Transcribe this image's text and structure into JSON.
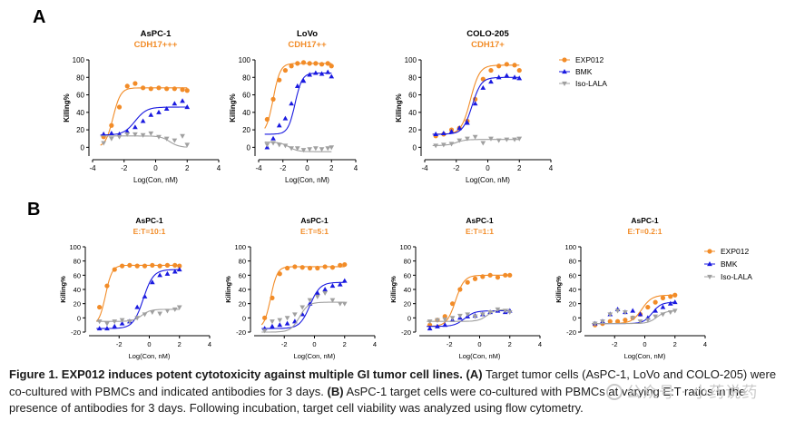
{
  "panel_letters": [
    "A",
    "B"
  ],
  "colors": {
    "exp": "#F28C28",
    "bmk": "#1A1AE0",
    "iso": "#A0A0A0"
  },
  "caption": {
    "label": "Figure 1. EXP012 induces potent cytotoxicity against multiple GI tumor cell lines.",
    "part_a_label": "(A)",
    "part_a_text": "Target tumor cells (AsPC-1, LoVo and COLO-205) were co-cultured with PBMCs and indicated antibodies for 3 days.",
    "part_b_label": "(B)",
    "part_b_text": "AsPC-1 target cells were co-cultured with PBMCs at varying E:T ratios in the presence of antibodies for 3 days. Following incubation, target cell viability was analyzed using flow cytometry."
  },
  "watermark": "公众号 · 小药说药",
  "chart_data": [
    {
      "type": "scatter",
      "panel": "A",
      "title": "AsPC-1",
      "subtitle": "CDH17+++",
      "xlabel": "Log(Con, nM)",
      "ylabel": "Killing%",
      "xlim": [
        -4,
        4
      ],
      "ylim": [
        -10,
        100
      ],
      "xticks": [
        -4,
        -2,
        0,
        2,
        4
      ],
      "yticks": [
        0,
        20,
        40,
        60,
        80,
        100
      ],
      "series": [
        {
          "name": "EXP012",
          "marker": "circle",
          "x": [
            -3.3,
            -2.8,
            -2.3,
            -1.8,
            -1.3,
            -0.8,
            -0.3,
            0.2,
            0.7,
            1.2,
            1.7,
            2.0
          ],
          "y": [
            12,
            25,
            46,
            70,
            73,
            68,
            67,
            68,
            67,
            67,
            66,
            65
          ],
          "fit": {
            "bottom": 0,
            "top": 68,
            "ec50": -2.7,
            "hill": 1.8
          }
        },
        {
          "name": "BMK",
          "marker": "triangle",
          "x": [
            -3.3,
            -2.8,
            -2.3,
            -1.8,
            -1.3,
            -0.8,
            -0.3,
            0.2,
            0.7,
            1.2,
            1.7,
            2.0
          ],
          "y": [
            15,
            16,
            15,
            18,
            23,
            30,
            37,
            40,
            44,
            50,
            53,
            46
          ],
          "fit": {
            "bottom": 14,
            "top": 46,
            "ec50": -1.3,
            "hill": 1.2
          }
        },
        {
          "name": "Iso-LALA",
          "marker": "triangle-down",
          "x": [
            -3.3,
            -2.8,
            -2.3,
            -1.8,
            -1.3,
            -0.8,
            -0.3,
            0.2,
            0.7,
            1.2,
            1.7,
            2.0
          ],
          "y": [
            5,
            10,
            12,
            15,
            15,
            14,
            16,
            12,
            10,
            8,
            13,
            3
          ],
          "fit": {
            "bottom": 13,
            "top": 0,
            "ec50": 0.9,
            "hill": 1.5
          }
        }
      ]
    },
    {
      "type": "scatter",
      "panel": "A",
      "title": "LoVo",
      "subtitle": "CDH17++",
      "xlabel": "Log(Con, nM)",
      "ylabel": "Killing%",
      "xlim": [
        -4,
        4
      ],
      "ylim": [
        -10,
        100
      ],
      "xticks": [
        -4,
        -2,
        0,
        2,
        4
      ],
      "yticks": [
        0,
        20,
        40,
        60,
        80,
        100
      ],
      "series": [
        {
          "name": "EXP012",
          "marker": "circle",
          "x": [
            -3.3,
            -2.8,
            -2.3,
            -1.8,
            -1.3,
            -0.8,
            -0.3,
            0.2,
            0.7,
            1.2,
            1.7,
            2.0
          ],
          "y": [
            32,
            55,
            77,
            88,
            93,
            96,
            97,
            96,
            96,
            95,
            96,
            93
          ],
          "fit": {
            "bottom": 15,
            "top": 96,
            "ec50": -2.8,
            "hill": 1.5
          }
        },
        {
          "name": "BMK",
          "marker": "triangle",
          "x": [
            -3.3,
            -2.8,
            -2.3,
            -1.8,
            -1.3,
            -0.8,
            -0.3,
            0.2,
            0.7,
            1.2,
            1.7,
            2.0
          ],
          "y": [
            0,
            10,
            25,
            33,
            50,
            70,
            76,
            83,
            85,
            84,
            86,
            81
          ],
          "fit": {
            "bottom": 15,
            "top": 85,
            "ec50": -1.0,
            "hill": 1.5
          }
        },
        {
          "name": "Iso-LALA",
          "marker": "triangle-down",
          "x": [
            -3.3,
            -2.8,
            -2.3,
            -1.8,
            -1.3,
            -0.8,
            -0.3,
            0.2,
            0.7,
            1.2,
            1.7,
            2.0
          ],
          "y": [
            3,
            5,
            3,
            2,
            -1,
            -1,
            -3,
            -2,
            -1,
            -2,
            -1,
            0
          ],
          "fit": {
            "bottom": 6,
            "top": -5,
            "ec50": -1.5,
            "hill": 1.2
          }
        }
      ]
    },
    {
      "type": "scatter",
      "panel": "A",
      "title": "COLO-205",
      "subtitle": "CDH17+",
      "xlabel": "Log(Con, nM)",
      "ylabel": "Killing%",
      "xlim": [
        -4,
        4
      ],
      "ylim": [
        -10,
        100
      ],
      "xticks": [
        -4,
        -2,
        0,
        2,
        4
      ],
      "yticks": [
        0,
        20,
        40,
        60,
        80,
        100
      ],
      "series": [
        {
          "name": "EXP012",
          "marker": "circle",
          "x": [
            -3.3,
            -2.8,
            -2.3,
            -1.8,
            -1.3,
            -0.8,
            -0.3,
            0.2,
            0.7,
            1.2,
            1.7,
            2.0
          ],
          "y": [
            13,
            15,
            20,
            22,
            30,
            55,
            78,
            88,
            93,
            95,
            94,
            88
          ],
          "fit": {
            "bottom": 15,
            "top": 94,
            "ec50": -1.1,
            "hill": 1.5
          }
        },
        {
          "name": "BMK",
          "marker": "triangle",
          "x": [
            -3.3,
            -2.8,
            -2.3,
            -1.8,
            -1.3,
            -0.8,
            -0.3,
            0.2,
            0.7,
            1.2,
            1.7,
            2.0
          ],
          "y": [
            15,
            16,
            18,
            22,
            28,
            50,
            68,
            75,
            80,
            82,
            80,
            79
          ],
          "fit": {
            "bottom": 15,
            "top": 80,
            "ec50": -1.0,
            "hill": 1.5
          }
        },
        {
          "name": "Iso-LALA",
          "marker": "triangle-down",
          "x": [
            -3.3,
            -2.8,
            -2.3,
            -1.8,
            -1.3,
            -0.8,
            -0.3,
            0.2,
            0.7,
            1.2,
            1.7,
            2.0
          ],
          "y": [
            2,
            3,
            4,
            8,
            10,
            12,
            5,
            10,
            8,
            9,
            9,
            10
          ],
          "fit": {
            "bottom": 2,
            "top": 9,
            "ec50": -2.0,
            "hill": 1.5
          }
        }
      ],
      "legend": [
        "EXP012",
        "BMK",
        "Iso-LALA"
      ]
    },
    {
      "type": "scatter",
      "panel": "B",
      "title": "AsPC-1",
      "subtitle": "E:T=10:1",
      "xlabel": "Log(Con, nM)",
      "ylabel": "Killing%",
      "xlim": [
        -4,
        4
      ],
      "ylim": [
        -20,
        100
      ],
      "xticks": [
        -2,
        0,
        2,
        4
      ],
      "yticks": [
        -20,
        0,
        20,
        40,
        60,
        80,
        100
      ],
      "series": [
        {
          "name": "EXP012",
          "marker": "circle",
          "x": [
            -3.3,
            -2.8,
            -2.3,
            -1.8,
            -1.3,
            -0.8,
            -0.3,
            0.2,
            0.7,
            1.2,
            1.7,
            2.0
          ],
          "y": [
            15,
            45,
            68,
            73,
            74,
            73,
            73,
            74,
            73,
            74,
            74,
            73
          ],
          "fit": {
            "bottom": -10,
            "top": 74,
            "ec50": -2.9,
            "hill": 2.0
          }
        },
        {
          "name": "BMK",
          "marker": "triangle",
          "x": [
            -3.3,
            -2.8,
            -2.3,
            -1.8,
            -1.3,
            -0.8,
            -0.3,
            0.2,
            0.7,
            1.2,
            1.7,
            2.0
          ],
          "y": [
            -15,
            -15,
            -12,
            -8,
            -5,
            15,
            30,
            50,
            60,
            62,
            65,
            68
          ],
          "fit": {
            "bottom": -15,
            "top": 68,
            "ec50": -0.4,
            "hill": 1.3
          }
        },
        {
          "name": "Iso-LALA",
          "marker": "triangle-down",
          "x": [
            -3.3,
            -2.8,
            -2.3,
            -1.8,
            -1.3,
            -0.8,
            -0.3,
            0.2,
            0.7,
            1.2,
            1.7,
            2.0
          ],
          "y": [
            -5,
            -8,
            -5,
            -3,
            -5,
            0,
            5,
            8,
            6,
            10,
            12,
            15
          ],
          "fit": {
            "bottom": -5,
            "top": 12,
            "ec50": -0.5,
            "hill": 1.5
          }
        }
      ]
    },
    {
      "type": "scatter",
      "panel": "B",
      "title": "AsPC-1",
      "subtitle": "E:T=5:1",
      "xlabel": "Log(Con, nM)",
      "ylabel": "Killing%",
      "xlim": [
        -4,
        4
      ],
      "ylim": [
        -20,
        100
      ],
      "xticks": [
        -2,
        0,
        2,
        4
      ],
      "yticks": [
        -20,
        0,
        20,
        40,
        60,
        80,
        100
      ],
      "series": [
        {
          "name": "EXP012",
          "marker": "circle",
          "x": [
            -3.3,
            -2.8,
            -2.3,
            -1.8,
            -1.3,
            -0.8,
            -0.3,
            0.2,
            0.7,
            1.2,
            1.7,
            2.0
          ],
          "y": [
            0,
            28,
            62,
            70,
            72,
            71,
            70,
            70,
            72,
            71,
            74,
            75
          ],
          "fit": {
            "bottom": -15,
            "top": 72,
            "ec50": -2.9,
            "hill": 2.0
          }
        },
        {
          "name": "BMK",
          "marker": "triangle",
          "x": [
            -3.3,
            -2.8,
            -2.3,
            -1.8,
            -1.3,
            -0.8,
            -0.3,
            0.2,
            0.7,
            1.2,
            1.7,
            2.0
          ],
          "y": [
            -15,
            -12,
            -10,
            -8,
            -5,
            5,
            20,
            35,
            40,
            45,
            47,
            52
          ],
          "fit": {
            "bottom": -15,
            "top": 50,
            "ec50": -0.3,
            "hill": 1.3
          }
        },
        {
          "name": "Iso-LALA",
          "marker": "triangle-down",
          "x": [
            -3.3,
            -2.8,
            -2.3,
            -1.8,
            -1.3,
            -0.8,
            -0.3,
            0.2,
            0.7,
            1.2,
            1.7,
            2.0
          ],
          "y": [
            -18,
            -5,
            -3,
            0,
            5,
            15,
            25,
            30,
            35,
            25,
            20,
            20
          ],
          "fit": {
            "bottom": -20,
            "top": 22,
            "ec50": -1.0,
            "hill": 1.5
          }
        }
      ]
    },
    {
      "type": "scatter",
      "panel": "B",
      "title": "AsPC-1",
      "subtitle": "E:T=1:1",
      "xlabel": "Log(Con, nM)",
      "ylabel": "Killing%",
      "xlim": [
        -4,
        4
      ],
      "ylim": [
        -20,
        100
      ],
      "xticks": [
        -2,
        0,
        2,
        4
      ],
      "yticks": [
        -20,
        0,
        20,
        40,
        60,
        80,
        100
      ],
      "series": [
        {
          "name": "EXP012",
          "marker": "circle",
          "x": [
            -3.3,
            -2.8,
            -2.3,
            -1.8,
            -1.3,
            -0.8,
            -0.3,
            0.2,
            0.7,
            1.2,
            1.7,
            2.0
          ],
          "y": [
            -10,
            -3,
            2,
            20,
            40,
            50,
            55,
            58,
            60,
            57,
            60,
            60
          ],
          "fit": {
            "bottom": -12,
            "top": 60,
            "ec50": -1.6,
            "hill": 1.5
          }
        },
        {
          "name": "BMK",
          "marker": "triangle",
          "x": [
            -3.3,
            -2.8,
            -2.3,
            -1.8,
            -1.3,
            -0.8,
            -0.3,
            0.2,
            0.7,
            1.2,
            1.7,
            2.0
          ],
          "y": [
            -15,
            -12,
            -10,
            -3,
            0,
            2,
            3,
            5,
            8,
            10,
            8,
            10
          ],
          "fit": {
            "bottom": -12,
            "top": 10,
            "ec50": -1.0,
            "hill": 1.3
          }
        },
        {
          "name": "Iso-LALA",
          "marker": "triangle-down",
          "x": [
            -3.3,
            -2.8,
            -2.3,
            -1.8,
            -1.3,
            -0.8,
            -0.3,
            0.2,
            0.7,
            1.2,
            1.7,
            2.0
          ],
          "y": [
            -5,
            -3,
            -2,
            0,
            3,
            5,
            2,
            5,
            8,
            12,
            10,
            8
          ],
          "fit": {
            "bottom": -5,
            "top": 12,
            "ec50": 0.5,
            "hill": 1.5
          }
        }
      ]
    },
    {
      "type": "scatter",
      "panel": "B",
      "title": "AsPC-1",
      "subtitle": "E:T=0.2:1",
      "xlabel": "Log(Con, nM)",
      "ylabel": "Killing%",
      "xlim": [
        -4,
        4
      ],
      "ylim": [
        -20,
        100
      ],
      "xticks": [
        -2,
        0,
        2,
        4
      ],
      "yticks": [
        -20,
        0,
        20,
        40,
        60,
        80,
        100
      ],
      "series": [
        {
          "name": "EXP012",
          "marker": "circle",
          "x": [
            -3.3,
            -2.8,
            -2.3,
            -1.8,
            -1.3,
            -0.8,
            -0.3,
            0.2,
            0.7,
            1.2,
            1.7,
            2.0
          ],
          "y": [
            -10,
            -8,
            -5,
            -5,
            -3,
            0,
            5,
            15,
            22,
            28,
            30,
            32
          ],
          "fit": {
            "bottom": -8,
            "top": 32,
            "ec50": -0.2,
            "hill": 1.3
          }
        },
        {
          "name": "BMK",
          "marker": "triangle",
          "x": [
            -3.3,
            -2.8,
            -2.3,
            -1.8,
            -1.3,
            -0.8,
            -0.3,
            0.2,
            0.7,
            1.2,
            1.7,
            2.0
          ],
          "y": [
            -8,
            -5,
            5,
            12,
            8,
            10,
            5,
            0,
            10,
            15,
            20,
            22
          ],
          "fit": {
            "bottom": -8,
            "top": 22,
            "ec50": 0.5,
            "hill": 1.5
          }
        },
        {
          "name": "Iso-LALA",
          "marker": "triangle-down",
          "x": [
            -3.3,
            -2.8,
            -2.3,
            -1.8,
            -1.3,
            -0.8,
            -0.3,
            0.2,
            0.7,
            1.2,
            1.7,
            2.0
          ],
          "y": [
            -8,
            -5,
            5,
            10,
            8,
            0,
            -5,
            -3,
            2,
            5,
            8,
            10
          ],
          "fit": {
            "bottom": -8,
            "top": 10,
            "ec50": 0.8,
            "hill": 1.5
          }
        }
      ],
      "legend": [
        "EXP012",
        "BMK",
        "Iso-LALA"
      ]
    }
  ]
}
